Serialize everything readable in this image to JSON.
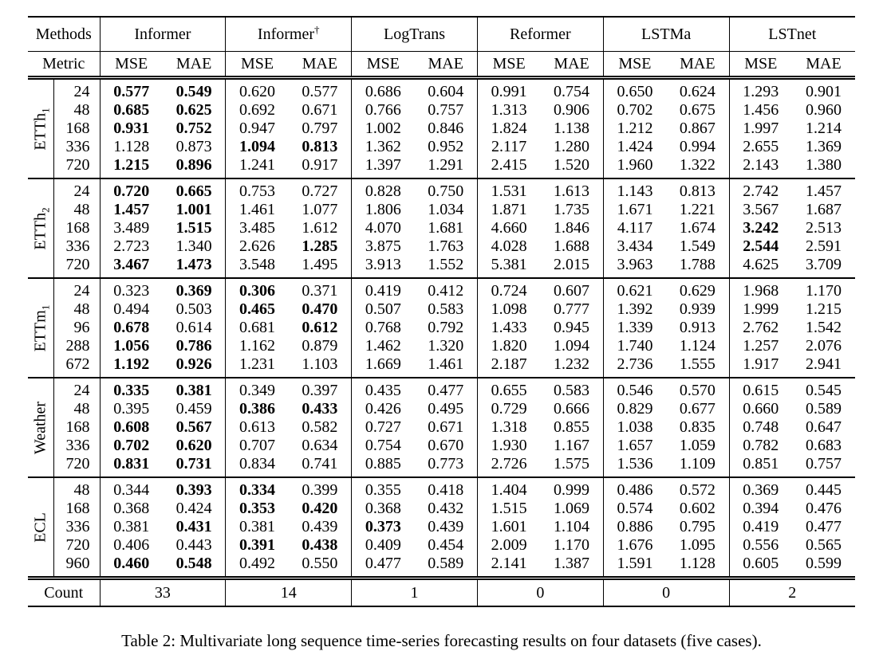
{
  "page": {
    "background": "#ffffff",
    "text_color": "#000000"
  },
  "table": {
    "header": {
      "methods_label": "Methods",
      "metric_label": "Metric",
      "methods": [
        {
          "name": "Informer",
          "sup": ""
        },
        {
          "name": "Informer",
          "sup": "†"
        },
        {
          "name": "LogTrans",
          "sup": ""
        },
        {
          "name": "Reformer",
          "sup": ""
        },
        {
          "name": "LSTMa",
          "sup": ""
        },
        {
          "name": "LSTnet",
          "sup": ""
        }
      ],
      "metrics": [
        "MSE",
        "MAE"
      ]
    },
    "groups": [
      {
        "dataset": "ETTh",
        "sub": "1",
        "rows": [
          {
            "horizon": "24",
            "values": [
              "0.577",
              "0.549",
              "0.620",
              "0.577",
              "0.686",
              "0.604",
              "0.991",
              "0.754",
              "0.650",
              "0.624",
              "1.293",
              "0.901"
            ],
            "bold": [
              0,
              1
            ]
          },
          {
            "horizon": "48",
            "values": [
              "0.685",
              "0.625",
              "0.692",
              "0.671",
              "0.766",
              "0.757",
              "1.313",
              "0.906",
              "0.702",
              "0.675",
              "1.456",
              "0.960"
            ],
            "bold": [
              0,
              1
            ]
          },
          {
            "horizon": "168",
            "values": [
              "0.931",
              "0.752",
              "0.947",
              "0.797",
              "1.002",
              "0.846",
              "1.824",
              "1.138",
              "1.212",
              "0.867",
              "1.997",
              "1.214"
            ],
            "bold": [
              0,
              1
            ]
          },
          {
            "horizon": "336",
            "values": [
              "1.128",
              "0.873",
              "1.094",
              "0.813",
              "1.362",
              "0.952",
              "2.117",
              "1.280",
              "1.424",
              "0.994",
              "2.655",
              "1.369"
            ],
            "bold": [
              2,
              3
            ]
          },
          {
            "horizon": "720",
            "values": [
              "1.215",
              "0.896",
              "1.241",
              "0.917",
              "1.397",
              "1.291",
              "2.415",
              "1.520",
              "1.960",
              "1.322",
              "2.143",
              "1.380"
            ],
            "bold": [
              0,
              1
            ]
          }
        ]
      },
      {
        "dataset": "ETTh",
        "sub": "2",
        "rows": [
          {
            "horizon": "24",
            "values": [
              "0.720",
              "0.665",
              "0.753",
              "0.727",
              "0.828",
              "0.750",
              "1.531",
              "1.613",
              "1.143",
              "0.813",
              "2.742",
              "1.457"
            ],
            "bold": [
              0,
              1
            ]
          },
          {
            "horizon": "48",
            "values": [
              "1.457",
              "1.001",
              "1.461",
              "1.077",
              "1.806",
              "1.034",
              "1.871",
              "1.735",
              "1.671",
              "1.221",
              "3.567",
              "1.687"
            ],
            "bold": [
              0,
              1
            ]
          },
          {
            "horizon": "168",
            "values": [
              "3.489",
              "1.515",
              "3.485",
              "1.612",
              "4.070",
              "1.681",
              "4.660",
              "1.846",
              "4.117",
              "1.674",
              "3.242",
              "2.513"
            ],
            "bold": [
              1,
              10
            ]
          },
          {
            "horizon": "336",
            "values": [
              "2.723",
              "1.340",
              "2.626",
              "1.285",
              "3.875",
              "1.763",
              "4.028",
              "1.688",
              "3.434",
              "1.549",
              "2.544",
              "2.591"
            ],
            "bold": [
              3,
              10
            ]
          },
          {
            "horizon": "720",
            "values": [
              "3.467",
              "1.473",
              "3.548",
              "1.495",
              "3.913",
              "1.552",
              "5.381",
              "2.015",
              "3.963",
              "1.788",
              "4.625",
              "3.709"
            ],
            "bold": [
              0,
              1
            ]
          }
        ]
      },
      {
        "dataset": "ETTm",
        "sub": "1",
        "rows": [
          {
            "horizon": "24",
            "values": [
              "0.323",
              "0.369",
              "0.306",
              "0.371",
              "0.419",
              "0.412",
              "0.724",
              "0.607",
              "0.621",
              "0.629",
              "1.968",
              "1.170"
            ],
            "bold": [
              1,
              2
            ]
          },
          {
            "horizon": "48",
            "values": [
              "0.494",
              "0.503",
              "0.465",
              "0.470",
              "0.507",
              "0.583",
              "1.098",
              "0.777",
              "1.392",
              "0.939",
              "1.999",
              "1.215"
            ],
            "bold": [
              2,
              3
            ]
          },
          {
            "horizon": "96",
            "values": [
              "0.678",
              "0.614",
              "0.681",
              "0.612",
              "0.768",
              "0.792",
              "1.433",
              "0.945",
              "1.339",
              "0.913",
              "2.762",
              "1.542"
            ],
            "bold": [
              0,
              3
            ]
          },
          {
            "horizon": "288",
            "values": [
              "1.056",
              "0.786",
              "1.162",
              "0.879",
              "1.462",
              "1.320",
              "1.820",
              "1.094",
              "1.740",
              "1.124",
              "1.257",
              "2.076"
            ],
            "bold": [
              0,
              1
            ]
          },
          {
            "horizon": "672",
            "values": [
              "1.192",
              "0.926",
              "1.231",
              "1.103",
              "1.669",
              "1.461",
              "2.187",
              "1.232",
              "2.736",
              "1.555",
              "1.917",
              "2.941"
            ],
            "bold": [
              0,
              1
            ]
          }
        ]
      },
      {
        "dataset": "Weather",
        "sub": "",
        "rows": [
          {
            "horizon": "24",
            "values": [
              "0.335",
              "0.381",
              "0.349",
              "0.397",
              "0.435",
              "0.477",
              "0.655",
              "0.583",
              "0.546",
              "0.570",
              "0.615",
              "0.545"
            ],
            "bold": [
              0,
              1
            ]
          },
          {
            "horizon": "48",
            "values": [
              "0.395",
              "0.459",
              "0.386",
              "0.433",
              "0.426",
              "0.495",
              "0.729",
              "0.666",
              "0.829",
              "0.677",
              "0.660",
              "0.589"
            ],
            "bold": [
              2,
              3
            ]
          },
          {
            "horizon": "168",
            "values": [
              "0.608",
              "0.567",
              "0.613",
              "0.582",
              "0.727",
              "0.671",
              "1.318",
              "0.855",
              "1.038",
              "0.835",
              "0.748",
              "0.647"
            ],
            "bold": [
              0,
              1
            ]
          },
          {
            "horizon": "336",
            "values": [
              "0.702",
              "0.620",
              "0.707",
              "0.634",
              "0.754",
              "0.670",
              "1.930",
              "1.167",
              "1.657",
              "1.059",
              "0.782",
              "0.683"
            ],
            "bold": [
              0,
              1
            ]
          },
          {
            "horizon": "720",
            "values": [
              "0.831",
              "0.731",
              "0.834",
              "0.741",
              "0.885",
              "0.773",
              "2.726",
              "1.575",
              "1.536",
              "1.109",
              "0.851",
              "0.757"
            ],
            "bold": [
              0,
              1
            ]
          }
        ]
      },
      {
        "dataset": "ECL",
        "sub": "",
        "rows": [
          {
            "horizon": "48",
            "values": [
              "0.344",
              "0.393",
              "0.334",
              "0.399",
              "0.355",
              "0.418",
              "1.404",
              "0.999",
              "0.486",
              "0.572",
              "0.369",
              "0.445"
            ],
            "bold": [
              1,
              2
            ]
          },
          {
            "horizon": "168",
            "values": [
              "0.368",
              "0.424",
              "0.353",
              "0.420",
              "0.368",
              "0.432",
              "1.515",
              "1.069",
              "0.574",
              "0.602",
              "0.394",
              "0.476"
            ],
            "bold": [
              2,
              3
            ]
          },
          {
            "horizon": "336",
            "values": [
              "0.381",
              "0.431",
              "0.381",
              "0.439",
              "0.373",
              "0.439",
              "1.601",
              "1.104",
              "0.886",
              "0.795",
              "0.419",
              "0.477"
            ],
            "bold": [
              1,
              4
            ]
          },
          {
            "horizon": "720",
            "values": [
              "0.406",
              "0.443",
              "0.391",
              "0.438",
              "0.409",
              "0.454",
              "2.009",
              "1.170",
              "1.676",
              "1.095",
              "0.556",
              "0.565"
            ],
            "bold": [
              2,
              3
            ]
          },
          {
            "horizon": "960",
            "values": [
              "0.460",
              "0.548",
              "0.492",
              "0.550",
              "0.477",
              "0.589",
              "2.141",
              "1.387",
              "1.591",
              "1.128",
              "0.605",
              "0.599"
            ],
            "bold": [
              0,
              1
            ]
          }
        ]
      }
    ],
    "footer": {
      "label": "Count",
      "counts": [
        "33",
        "14",
        "1",
        "0",
        "0",
        "2"
      ]
    },
    "caption": "Table 2: Multivariate long sequence time-series forecasting results on four datasets (five cases)."
  }
}
